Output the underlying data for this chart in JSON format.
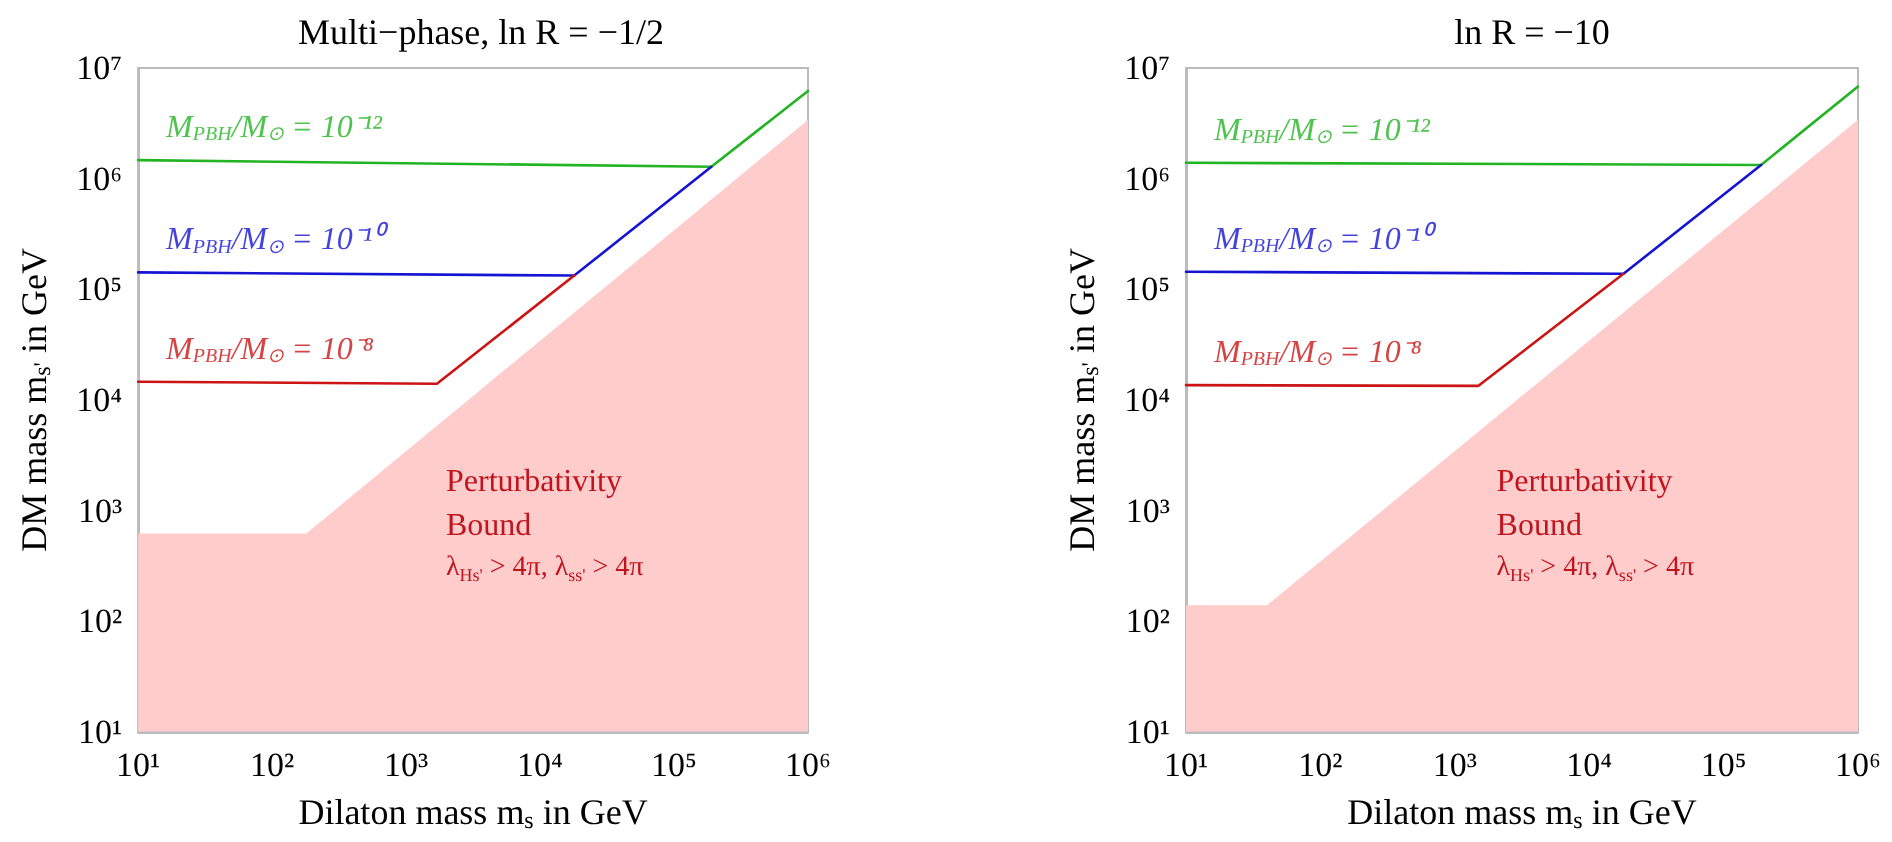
{
  "chart_data": [
    {
      "type": "line",
      "title": "Multi−phase, ln R = −1/2",
      "xlabel": "Dilaton mass m$_{s}$ in GeV",
      "ylabel": "DM mass m$_{s'}$ in GeV",
      "log": "xy",
      "marker": "none",
      "line_style": "solid",
      "xlim": [
        10,
        1000000
      ],
      "ylim": [
        10,
        10000000
      ],
      "xticks": [
        {
          "value": 10,
          "label": "10¹"
        },
        {
          "value": 100,
          "label": "10²"
        },
        {
          "value": 1000,
          "label": "10³"
        },
        {
          "value": 10000,
          "label": "10⁴"
        },
        {
          "value": 100000,
          "label": "10⁵"
        },
        {
          "value": 1000000,
          "label": "10⁶"
        }
      ],
      "yticks": [
        {
          "value": 10,
          "label": "10¹"
        },
        {
          "value": 100,
          "label": "10²"
        },
        {
          "value": 1000,
          "label": "10³"
        },
        {
          "value": 10000,
          "label": "10⁴"
        },
        {
          "value": 100000,
          "label": "10⁵"
        },
        {
          "value": 1000000,
          "label": "10⁶"
        },
        {
          "value": 10000000,
          "label": "10⁷"
        }
      ],
      "series": [
        {
          "type": "area",
          "color": "#ffcccc",
          "x": [
            10,
            180,
            1000000
          ],
          "values": [
            620,
            620,
            3400000
          ]
        },
        {
          "name": "M$_{PBH}$/M$_{⊙}$ = 10⁻¹²",
          "color": "#22b422",
          "x": [
            10,
            190000,
            1000000
          ],
          "values": [
            1470000,
            1280000,
            6200000
          ]
        },
        {
          "name": "M$_{PBH}$/M$_{⊙}$ = 10⁻¹⁰",
          "color": "#1414d2",
          "x": [
            10,
            18000,
            190000
          ],
          "values": [
            142000,
            133000,
            1280000
          ]
        },
        {
          "name": "M$_{PBH}$/M$_{⊙}$ = 10⁻⁸",
          "color": "#cc1414",
          "x": [
            10,
            1700,
            18000
          ],
          "values": [
            14600,
            14000,
            133000
          ]
        }
      ],
      "annotations": [
        "Perturbativity",
        "Bound",
        "λ$_{Hs'}$ > 4π, λ$_{ss'}$ > 4π"
      ]
    },
    {
      "type": "line",
      "title": "ln R = −10",
      "xlabel": "Dilaton mass m$_{s}$ in GeV",
      "ylabel": "DM mass m$_{s'}$ in GeV",
      "log": "xy",
      "marker": "none",
      "line_style": "solid",
      "xlim": [
        10,
        1000000
      ],
      "ylim": [
        10,
        10000000
      ],
      "xticks": [
        {
          "value": 10,
          "label": "10¹"
        },
        {
          "value": 100,
          "label": "10²"
        },
        {
          "value": 1000,
          "label": "10³"
        },
        {
          "value": 10000,
          "label": "10⁴"
        },
        {
          "value": 100000,
          "label": "10⁵"
        },
        {
          "value": 1000000,
          "label": "10⁶"
        }
      ],
      "yticks": [
        {
          "value": 10,
          "label": "10¹"
        },
        {
          "value": 100,
          "label": "10²"
        },
        {
          "value": 1000,
          "label": "10³"
        },
        {
          "value": 10000,
          "label": "10⁴"
        },
        {
          "value": 100000,
          "label": "10⁵"
        },
        {
          "value": 1000000,
          "label": "10⁶"
        },
        {
          "value": 10000000,
          "label": "10⁷"
        }
      ],
      "series": [
        {
          "type": "area",
          "color": "#ffcccc",
          "x": [
            10,
            40,
            1000000
          ],
          "values": [
            139,
            139,
            3400000
          ]
        },
        {
          "name": "M$_{PBH}$/M$_{⊙}$ = 10⁻¹²",
          "color": "#22b422",
          "x": [
            10,
            190000,
            1000000
          ],
          "values": [
            1390000,
            1330000,
            6800000
          ]
        },
        {
          "name": "M$_{PBH}$/M$_{⊙}$ = 10⁻¹⁰",
          "color": "#1414d2",
          "x": [
            10,
            18000,
            190000
          ],
          "values": [
            144000,
            138000,
            1330000
          ]
        },
        {
          "name": "M$_{PBH}$/M$_{⊙}$ = 10⁻⁸",
          "color": "#cc1414",
          "x": [
            10,
            1500,
            18000
          ],
          "values": [
            13600,
            13400,
            138000
          ]
        }
      ],
      "annotations": [
        "Perturbativity",
        "Bound",
        "λ$_{Hs'}$ > 4π, λ$_{ss'}$ > 4π"
      ]
    }
  ]
}
